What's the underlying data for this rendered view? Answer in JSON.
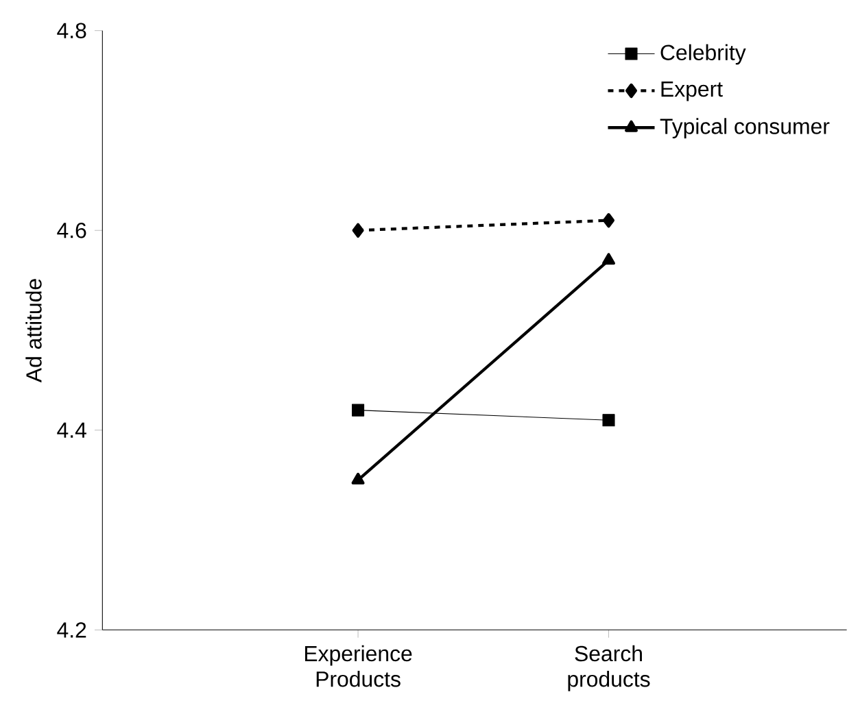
{
  "chart_data": {
    "type": "line",
    "ylabel": "Ad attitude",
    "categories": [
      "Experience Products",
      "Search products"
    ],
    "series": [
      {
        "name": "Celebrity",
        "color": "#000000",
        "values": [
          4.42,
          4.41
        ],
        "marker": "square",
        "line_style": "solid"
      },
      {
        "name": "Expert",
        "color": "#000000",
        "values": [
          4.6,
          4.61
        ],
        "marker": "diamond",
        "line_style": "dotted"
      },
      {
        "name": "Typical consumer",
        "color": "#000000",
        "values": [
          4.35,
          4.57
        ],
        "marker": "triangle",
        "line_style": "solid"
      }
    ],
    "ylim": [
      4.2,
      4.8
    ],
    "yticks": [
      4.2,
      4.4,
      4.6,
      4.8
    ],
    "grid": false,
    "legend": "top right"
  }
}
